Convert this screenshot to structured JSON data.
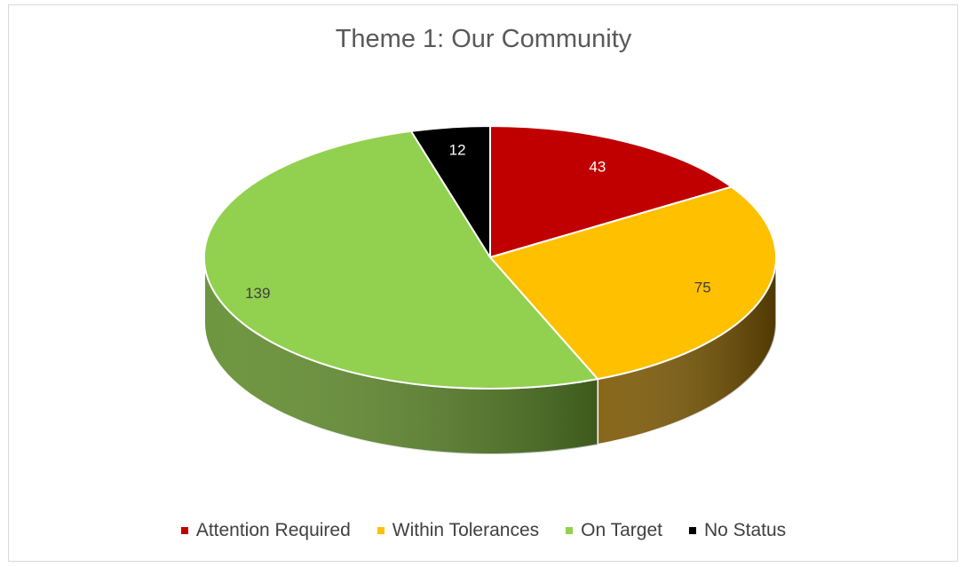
{
  "chart_data": {
    "type": "pie",
    "title": "Theme 1: Our Community",
    "categories": [
      "Attention Required",
      "Within Tolerances",
      "On Target",
      "No Status"
    ],
    "values": [
      43,
      75,
      139,
      12
    ],
    "colors": [
      "#c00000",
      "#ffc000",
      "#92d050",
      "#000000"
    ],
    "side_colors": [
      "#8a0000",
      "#7a5600",
      "#5e8a2a",
      "#111111"
    ],
    "label_colors": [
      "#ffffff",
      "#404040",
      "#404040",
      "#ffffff"
    ],
    "style": "3d",
    "legend": "bottom"
  }
}
